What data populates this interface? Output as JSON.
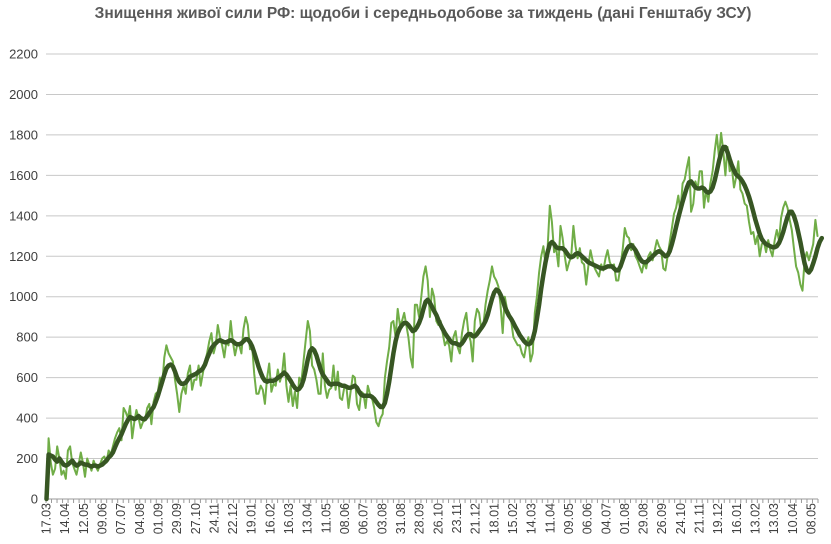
{
  "chart_data": {
    "type": "line",
    "title": "Знищення живої сили РФ: щодоби і середньодобове за тиждень (дані Генштабу ЗСУ)",
    "xlabel": "",
    "ylabel": "",
    "ylim": [
      0,
      2200
    ],
    "yticks": [
      0,
      200,
      400,
      600,
      800,
      1000,
      1200,
      1400,
      1600,
      1800,
      2000,
      2200
    ],
    "grid": true,
    "x_tick_labels": [
      "17.03",
      "14.04",
      "12.05",
      "09.06",
      "07.07",
      "04.08",
      "01.09",
      "29.09",
      "27.10",
      "24.11",
      "22.12",
      "19.01",
      "16.02",
      "16.03",
      "13.04",
      "11.05",
      "08.06",
      "06.07",
      "03.08",
      "31.08",
      "28.09",
      "26.10",
      "23.11",
      "21.12",
      "18.01",
      "15.02",
      "14.03",
      "11.04",
      "09.05",
      "06.06",
      "04.07",
      "01.08",
      "29.08",
      "26.09",
      "24.10",
      "21.11",
      "19.12",
      "16.01",
      "13.02",
      "13.03",
      "10.04",
      "08.05"
    ],
    "series": [
      {
        "name": "",
        "role": "daily",
        "color": "#70ad47",
        "values": [
          0,
          300,
          180,
          120,
          150,
          260,
          200,
          120,
          140,
          100,
          240,
          260,
          180,
          150,
          120,
          170,
          230,
          180,
          110,
          200,
          170,
          140,
          190,
          160,
          140,
          170,
          200,
          210,
          180,
          240,
          220,
          260,
          300,
          330,
          350,
          290,
          450,
          430,
          400,
          460,
          300,
          380,
          440,
          400,
          350,
          380,
          390,
          450,
          470,
          370,
          480,
          520,
          530,
          600,
          560,
          700,
          760,
          720,
          700,
          680,
          590,
          520,
          430,
          520,
          560,
          520,
          620,
          660,
          540,
          590,
          590,
          660,
          560,
          620,
          680,
          720,
          780,
          820,
          720,
          760,
          860,
          800,
          760,
          700,
          780,
          760,
          880,
          780,
          710,
          760,
          760,
          720,
          840,
          900,
          860,
          740,
          760,
          620,
          520,
          520,
          560,
          540,
          470,
          600,
          670,
          530,
          570,
          560,
          640,
          580,
          620,
          720,
          560,
          480,
          560,
          460,
          530,
          450,
          600,
          580,
          680,
          780,
          880,
          830,
          660,
          640,
          590,
          520,
          520,
          720,
          560,
          500,
          540,
          550,
          660,
          540,
          630,
          500,
          490,
          550,
          560,
          450,
          530,
          610,
          600,
          470,
          440,
          530,
          520,
          450,
          560,
          520,
          500,
          450,
          380,
          360,
          400,
          420,
          600,
          680,
          750,
          870,
          880,
          800,
          940,
          860,
          880,
          920,
          860,
          800,
          700,
          650,
          960,
          960,
          900,
          1000,
          1100,
          1150,
          1080,
          900,
          1040,
          1000,
          880,
          860,
          880,
          820,
          760,
          780,
          760,
          680,
          800,
          830,
          750,
          720,
          820,
          880,
          920,
          820,
          780,
          680,
          880,
          940,
          920,
          840,
          860,
          960,
          1030,
          1080,
          1150,
          1100,
          1080,
          1050,
          960,
          820,
          1000,
          940,
          920,
          880,
          800,
          780,
          760,
          760,
          720,
          700,
          760,
          800,
          680,
          720,
          920,
          1000,
          1120,
          1200,
          1250,
          1160,
          1240,
          1450,
          1370,
          1220,
          1240,
          1150,
          1350,
          1290,
          1200,
          1130,
          1170,
          1200,
          1350,
          1250,
          1190,
          1240,
          1170,
          1160,
          1060,
          1150,
          1230,
          1180,
          1140,
          1120,
          1100,
          1160,
          1130,
          1190,
          1230,
          1170,
          1150,
          1160,
          1080,
          1080,
          1150,
          1230,
          1340,
          1300,
          1290,
          1230,
          1260,
          1200,
          1180,
          1150,
          1120,
          1170,
          1140,
          1200,
          1220,
          1180,
          1230,
          1280,
          1250,
          1230,
          1140,
          1130,
          1200,
          1270,
          1340,
          1410,
          1440,
          1500,
          1420,
          1560,
          1580,
          1640,
          1690,
          1420,
          1460,
          1570,
          1530,
          1620,
          1620,
          1440,
          1530,
          1470,
          1560,
          1620,
          1720,
          1800,
          1690,
          1810,
          1720,
          1600,
          1740,
          1620,
          1640,
          1540,
          1590,
          1670,
          1530,
          1510,
          1460,
          1450,
          1370,
          1310,
          1320,
          1260,
          1300,
          1200,
          1260,
          1270,
          1220,
          1280,
          1230,
          1200,
          1280,
          1330,
          1280,
          1390,
          1440,
          1470,
          1440,
          1380,
          1330,
          1240,
          1150,
          1120,
          1060,
          1030,
          1180,
          1220,
          1180,
          1220,
          1260,
          1380,
          1300
        ]
      },
      {
        "name": "",
        "role": "weekly-average",
        "color": "#375623",
        "values": [
          0,
          220,
          215,
          210,
          195,
          185,
          200,
          185,
          170,
          165,
          170,
          180,
          190,
          175,
          165,
          170,
          180,
          175,
          170,
          170,
          165,
          160,
          165,
          165,
          160,
          165,
          170,
          180,
          190,
          205,
          215,
          230,
          255,
          280,
          300,
          320,
          345,
          370,
          390,
          405,
          400,
          395,
          400,
          410,
          400,
          395,
          395,
          410,
          425,
          440,
          455,
          480,
          510,
          545,
          580,
          615,
          645,
          660,
          665,
          655,
          630,
          600,
          580,
          570,
          570,
          575,
          590,
          605,
          610,
          615,
          620,
          630,
          635,
          645,
          665,
          695,
          720,
          745,
          760,
          770,
          780,
          785,
          780,
          775,
          775,
          780,
          785,
          780,
          770,
          765,
          765,
          770,
          780,
          790,
          790,
          775,
          755,
          725,
          690,
          655,
          625,
          600,
          585,
          580,
          585,
          585,
          585,
          590,
          600,
          605,
          615,
          625,
          615,
          600,
          585,
          565,
          550,
          540,
          545,
          560,
          590,
          635,
          690,
          730,
          745,
          735,
          710,
          675,
          640,
          615,
          600,
          585,
          570,
          565,
          570,
          570,
          570,
          565,
          560,
          560,
          555,
          550,
          550,
          555,
          560,
          550,
          530,
          515,
          510,
          510,
          510,
          510,
          505,
          495,
          480,
          465,
          455,
          455,
          475,
          520,
          580,
          650,
          720,
          780,
          820,
          845,
          860,
          870,
          870,
          860,
          845,
          830,
          835,
          850,
          870,
          900,
          940,
          975,
          985,
          970,
          950,
          930,
          910,
          885,
          860,
          840,
          820,
          805,
          790,
          775,
          770,
          770,
          765,
          760,
          770,
          785,
          805,
          815,
          815,
          805,
          805,
          815,
          830,
          845,
          860,
          880,
          910,
          950,
          990,
          1020,
          1035,
          1030,
          1010,
          985,
          950,
          925,
          905,
          890,
          870,
          850,
          830,
          810,
          795,
          780,
          770,
          765,
          770,
          790,
          830,
          890,
          960,
          1040,
          1110,
          1170,
          1220,
          1260,
          1270,
          1260,
          1245,
          1240,
          1240,
          1240,
          1230,
          1215,
          1200,
          1195,
          1200,
          1210,
          1215,
          1210,
          1200,
          1190,
          1180,
          1170,
          1165,
          1160,
          1155,
          1150,
          1145,
          1140,
          1140,
          1145,
          1150,
          1150,
          1150,
          1140,
          1130,
          1130,
          1150,
          1180,
          1210,
          1235,
          1250,
          1255,
          1245,
          1230,
          1210,
          1190,
          1175,
          1170,
          1170,
          1180,
          1190,
          1200,
          1210,
          1220,
          1225,
          1220,
          1210,
          1200,
          1205,
          1225,
          1260,
          1300,
          1345,
          1390,
          1430,
          1470,
          1505,
          1540,
          1565,
          1570,
          1555,
          1540,
          1535,
          1535,
          1540,
          1535,
          1520,
          1515,
          1520,
          1540,
          1575,
          1620,
          1670,
          1710,
          1740,
          1740,
          1715,
          1680,
          1650,
          1625,
          1605,
          1595,
          1585,
          1570,
          1550,
          1525,
          1495,
          1460,
          1420,
          1380,
          1345,
          1310,
          1285,
          1270,
          1260,
          1255,
          1250,
          1245,
          1245,
          1250,
          1265,
          1290,
          1320,
          1360,
          1395,
          1420,
          1420,
          1400,
          1365,
          1320,
          1270,
          1215,
          1165,
          1130,
          1120,
          1135,
          1165,
          1200,
          1240,
          1270,
          1290
        ]
      }
    ]
  }
}
